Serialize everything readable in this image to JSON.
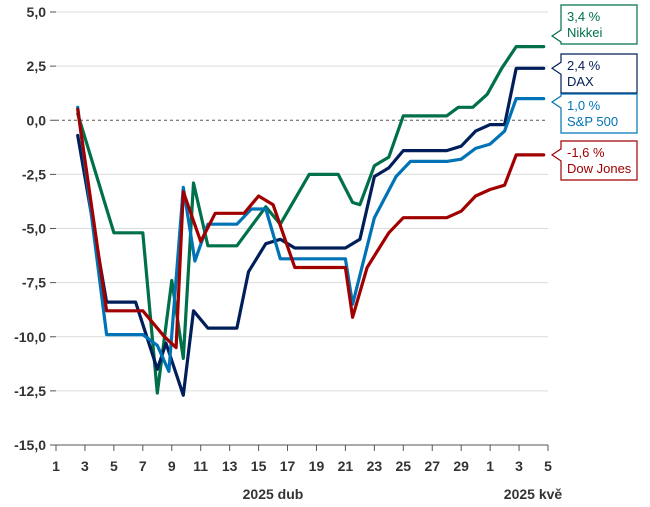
{
  "chart_data": {
    "type": "line",
    "title": "",
    "xlabel": "",
    "ylabel": "",
    "x_ticks": [
      "1",
      "3",
      "5",
      "7",
      "9",
      "11",
      "13",
      "15",
      "17",
      "19",
      "21",
      "23",
      "25",
      "27",
      "29",
      "1",
      "3",
      "5"
    ],
    "x_group_labels": {
      "april": "2025 dub",
      "may": "2025 kvě"
    },
    "y_ticks": [
      "5,0",
      "2,5",
      "0,0",
      "-2,5",
      "-5,0",
      "-7,5",
      "-10,0",
      "-12,5",
      "-15,0"
    ],
    "ylim": [
      -15,
      5
    ],
    "x_range_days": [
      1,
      35
    ],
    "zero_line": "dashed",
    "series": [
      {
        "name": "Nikkei",
        "end_label": "3,4 %",
        "color": "#00704a",
        "points": [
          [
            2.5,
            0.3
          ],
          [
            5,
            -5.2
          ],
          [
            7,
            -5.2
          ],
          [
            8,
            -12.6
          ],
          [
            9,
            -7.4
          ],
          [
            9.8,
            -11
          ],
          [
            10.5,
            -2.9
          ],
          [
            11.5,
            -5.8
          ],
          [
            13.5,
            -5.8
          ],
          [
            15.5,
            -4
          ],
          [
            16.5,
            -4.8
          ],
          [
            18.5,
            -2.5
          ],
          [
            20.5,
            -2.5
          ],
          [
            21.5,
            -3.8
          ],
          [
            22,
            -3.9
          ],
          [
            23,
            -2.1
          ],
          [
            24,
            -1.7
          ],
          [
            25,
            0.2
          ],
          [
            26,
            0.2
          ],
          [
            28,
            0.2
          ],
          [
            28.8,
            0.6
          ],
          [
            29.8,
            0.6
          ],
          [
            30.8,
            1.2
          ],
          [
            31.8,
            2.4
          ],
          [
            32.8,
            3.4
          ],
          [
            34.7,
            3.4
          ]
        ]
      },
      {
        "name": "DAX",
        "end_label": "2,4 %",
        "color": "#001e5a",
        "points": [
          [
            2.5,
            -0.7
          ],
          [
            4.5,
            -8.4
          ],
          [
            6.5,
            -8.4
          ],
          [
            8,
            -11.5
          ],
          [
            8.6,
            -10.3
          ],
          [
            9.8,
            -12.7
          ],
          [
            10.5,
            -8.8
          ],
          [
            11.5,
            -9.6
          ],
          [
            13.5,
            -9.6
          ],
          [
            14.3,
            -7
          ],
          [
            15.5,
            -5.7
          ],
          [
            16.5,
            -5.5
          ],
          [
            17.5,
            -5.9
          ],
          [
            21,
            -5.9
          ],
          [
            22,
            -5.5
          ],
          [
            23,
            -2.6
          ],
          [
            24,
            -2.2
          ],
          [
            25,
            -1.4
          ],
          [
            26,
            -1.4
          ],
          [
            28,
            -1.4
          ],
          [
            29,
            -1.2
          ],
          [
            30,
            -0.5
          ],
          [
            31,
            -0.2
          ],
          [
            32,
            -0.2
          ],
          [
            32.8,
            2.4
          ],
          [
            34.7,
            2.4
          ]
        ]
      },
      {
        "name": "S&P 500",
        "end_label": "1,0 %",
        "color": "#0073b6",
        "points": [
          [
            2.5,
            0.6
          ],
          [
            4.5,
            -9.9
          ],
          [
            7,
            -9.9
          ],
          [
            8,
            -10.4
          ],
          [
            8.8,
            -11.6
          ],
          [
            9.8,
            -3.1
          ],
          [
            10.6,
            -6.5
          ],
          [
            11.5,
            -4.8
          ],
          [
            13.5,
            -4.8
          ],
          [
            14.5,
            -4.1
          ],
          [
            15.5,
            -4.1
          ],
          [
            16.5,
            -6.4
          ],
          [
            21,
            -6.4
          ],
          [
            21.5,
            -8.5
          ],
          [
            23,
            -4.5
          ],
          [
            24.5,
            -2.6
          ],
          [
            25.5,
            -1.9
          ],
          [
            26.5,
            -1.9
          ],
          [
            28,
            -1.9
          ],
          [
            29,
            -1.8
          ],
          [
            30,
            -1.3
          ],
          [
            31,
            -1.1
          ],
          [
            32,
            -0.5
          ],
          [
            32.8,
            1
          ],
          [
            34.7,
            1
          ]
        ]
      },
      {
        "name": "Dow Jones",
        "end_label": "-1,6 %",
        "color": "#a10000",
        "points": [
          [
            2.5,
            0.5
          ],
          [
            4.5,
            -8.8
          ],
          [
            7,
            -8.8
          ],
          [
            8.5,
            -10
          ],
          [
            9.3,
            -10.5
          ],
          [
            9.8,
            -3.3
          ],
          [
            11,
            -5.6
          ],
          [
            12,
            -4.3
          ],
          [
            14,
            -4.3
          ],
          [
            15,
            -3.5
          ],
          [
            16,
            -3.9
          ],
          [
            17.5,
            -6.8
          ],
          [
            21,
            -6.8
          ],
          [
            21.5,
            -9.1
          ],
          [
            22.5,
            -6.8
          ],
          [
            24,
            -5.2
          ],
          [
            25,
            -4.5
          ],
          [
            26,
            -4.5
          ],
          [
            28,
            -4.5
          ],
          [
            29,
            -4.2
          ],
          [
            30,
            -3.5
          ],
          [
            31,
            -3.2
          ],
          [
            32,
            -3
          ],
          [
            32.8,
            -1.6
          ],
          [
            34.7,
            -1.6
          ]
        ]
      }
    ]
  }
}
